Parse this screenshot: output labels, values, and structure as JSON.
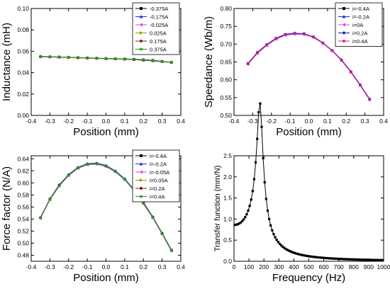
{
  "chart_data": [
    {
      "type": "line",
      "xlabel": "Position (mm)",
      "ylabel": "Inductance (mH)",
      "xlim": [
        -0.4,
        0.4
      ],
      "ylim": [
        0.0,
        0.1
      ],
      "xticks": [
        "-0.4",
        "-0.3",
        "-0.2",
        "-0.1",
        "0.0",
        "0.1",
        "0.2",
        "0.3",
        "0.4"
      ],
      "yticks": [
        "0.00",
        "0.02",
        "0.04",
        "0.06",
        "0.08",
        "0.10"
      ],
      "x": [
        -0.35,
        -0.3,
        -0.25,
        -0.2,
        -0.15,
        -0.1,
        -0.05,
        0.0,
        0.05,
        0.1,
        0.15,
        0.2,
        0.25,
        0.3,
        0.35
      ],
      "legend_position": "top-right",
      "series": [
        {
          "name": "-0.375A",
          "color": "#000000",
          "marker": "square",
          "values": [
            0.055,
            0.0548,
            0.0545,
            0.0543,
            0.054,
            0.0538,
            0.0535,
            0.0532,
            0.053,
            0.0528,
            0.0525,
            0.052,
            0.0515,
            0.0505,
            0.0495
          ]
        },
        {
          "name": "-0.175A",
          "color": "#1f2ee0",
          "marker": "triangle",
          "values": [
            0.0552,
            0.055,
            0.0547,
            0.0544,
            0.0541,
            0.0539,
            0.0536,
            0.0533,
            0.0531,
            0.0529,
            0.0526,
            0.0521,
            0.0516,
            0.0506,
            0.0497
          ]
        },
        {
          "name": "-0.025A",
          "color": "#e040e0",
          "marker": "triangle-left",
          "values": [
            0.0551,
            0.0549,
            0.0546,
            0.0544,
            0.0541,
            0.0538,
            0.0535,
            0.0532,
            0.053,
            0.0527,
            0.0523,
            0.0517,
            0.051,
            0.0502,
            0.0496
          ]
        },
        {
          "name": "0.025A",
          "color": "#9a9a00",
          "marker": "triangle-right",
          "values": [
            0.055,
            0.0548,
            0.0545,
            0.0543,
            0.054,
            0.0537,
            0.0534,
            0.0531,
            0.0529,
            0.0526,
            0.0522,
            0.0518,
            0.0512,
            0.0504,
            0.0498
          ]
        },
        {
          "name": "0.175A",
          "color": "#8b1a1a",
          "marker": "circle",
          "values": [
            0.0549,
            0.0547,
            0.0544,
            0.0542,
            0.0539,
            0.0536,
            0.0533,
            0.053,
            0.0528,
            0.0525,
            0.0521,
            0.0516,
            0.051,
            0.0503,
            0.0496
          ]
        },
        {
          "name": "0.375A",
          "color": "#1aa01a",
          "marker": "star",
          "values": [
            0.055,
            0.0548,
            0.0546,
            0.0543,
            0.054,
            0.0538,
            0.0535,
            0.0532,
            0.053,
            0.0527,
            0.0524,
            0.0519,
            0.0513,
            0.0505,
            0.0497
          ]
        }
      ]
    },
    {
      "type": "line",
      "xlabel": "Position (mm)",
      "ylabel": "Speedance (Wb/m)",
      "xlim": [
        -0.4,
        0.4
      ],
      "ylim": [
        0.5,
        0.8
      ],
      "xticks": [
        "-0.4",
        "-0.3",
        "-0.2",
        "-0.1",
        "0.0",
        "0.1",
        "0.2",
        "0.3",
        "0.4"
      ],
      "yticks": [
        "0.50",
        "0.55",
        "0.60",
        "0.65",
        "0.70",
        "0.75",
        "0.80"
      ],
      "x": [
        -0.325,
        -0.275,
        -0.225,
        -0.175,
        -0.125,
        -0.075,
        -0.025,
        0.025,
        0.075,
        0.125,
        0.175,
        0.225,
        0.275,
        0.325
      ],
      "legend_position": "top-right",
      "series": [
        {
          "name": "i=-0.4A",
          "color": "#000000",
          "marker": "square",
          "values": [
            0.645,
            0.676,
            0.698,
            0.716,
            0.727,
            0.73,
            0.729,
            0.72,
            0.703,
            0.682,
            0.655,
            0.622,
            0.585,
            0.545
          ]
        },
        {
          "name": "i=-0.2A",
          "color": "#1f2ee0",
          "marker": "triangle",
          "values": [
            0.646,
            0.677,
            0.699,
            0.717,
            0.728,
            0.731,
            0.729,
            0.721,
            0.704,
            0.682,
            0.656,
            0.623,
            0.586,
            0.546
          ]
        },
        {
          "name": "i=0A",
          "color": "#e040e0",
          "marker": "triangle-left",
          "values": [
            0.644,
            0.674,
            0.696,
            0.714,
            0.725,
            0.728,
            0.727,
            0.719,
            0.702,
            0.681,
            0.654,
            0.622,
            0.584,
            0.544
          ]
        },
        {
          "name": "i=0.2A",
          "color": "#1a1a8b",
          "marker": "diamond",
          "values": [
            0.645,
            0.676,
            0.698,
            0.715,
            0.726,
            0.729,
            0.728,
            0.72,
            0.703,
            0.682,
            0.655,
            0.622,
            0.585,
            0.545
          ]
        },
        {
          "name": "i=0.4A",
          "color": "#e0208a",
          "marker": "circle",
          "values": [
            0.644,
            0.675,
            0.697,
            0.715,
            0.726,
            0.729,
            0.728,
            0.719,
            0.703,
            0.681,
            0.654,
            0.621,
            0.584,
            0.544
          ]
        }
      ]
    },
    {
      "type": "line",
      "xlabel": "Position (mm)",
      "ylabel": "Force factor (N/A)",
      "xlim": [
        -0.4,
        0.4
      ],
      "ylim": [
        0.47,
        0.645
      ],
      "xticks": [
        "-0.4",
        "-0.3",
        "-0.2",
        "-0.1",
        "0.0",
        "0.1",
        "0.2",
        "0.3",
        "0.4"
      ],
      "yticks": [
        "0.48",
        "0.50",
        "0.52",
        "0.54",
        "0.56",
        "0.58",
        "0.60",
        "0.62",
        "0.64"
      ],
      "x": [
        -0.35,
        -0.3,
        -0.25,
        -0.2,
        -0.15,
        -0.1,
        -0.05,
        0.0,
        0.05,
        0.1,
        0.15,
        0.2,
        0.25,
        0.3,
        0.35
      ],
      "legend_position": "top-right",
      "series": [
        {
          "name": "i=-0.4A",
          "color": "#000000",
          "marker": "square",
          "values": [
            0.542,
            0.573,
            0.596,
            0.613,
            0.625,
            0.631,
            0.632,
            0.628,
            0.619,
            0.606,
            0.588,
            0.567,
            0.543,
            0.516,
            0.488
          ]
        },
        {
          "name": "i=-0.2A",
          "color": "#1f2ee0",
          "marker": "triangle",
          "values": [
            0.543,
            0.574,
            0.597,
            0.614,
            0.626,
            0.632,
            0.633,
            0.629,
            0.62,
            0.607,
            0.589,
            0.568,
            0.544,
            0.517,
            0.489
          ]
        },
        {
          "name": "i=-0.05A",
          "color": "#e040e0",
          "marker": "triangle-left",
          "values": [
            0.541,
            0.572,
            0.595,
            0.612,
            0.624,
            0.63,
            0.631,
            0.627,
            0.618,
            0.605,
            0.587,
            0.565,
            0.542,
            0.515,
            0.487
          ]
        },
        {
          "name": "i=0.05A",
          "color": "#9a9a00",
          "marker": "triangle-right",
          "values": [
            0.542,
            0.573,
            0.596,
            0.613,
            0.625,
            0.631,
            0.632,
            0.628,
            0.619,
            0.606,
            0.588,
            0.567,
            0.543,
            0.516,
            0.488
          ]
        },
        {
          "name": "i=0.2A",
          "color": "#8b1a1a",
          "marker": "circle",
          "values": [
            0.542,
            0.573,
            0.596,
            0.613,
            0.625,
            0.631,
            0.632,
            0.628,
            0.619,
            0.606,
            0.588,
            0.567,
            0.543,
            0.516,
            0.488
          ]
        },
        {
          "name": "i=0.4A",
          "color": "#1aa01a",
          "marker": "star",
          "values": [
            0.542,
            0.573,
            0.595,
            0.613,
            0.625,
            0.631,
            0.632,
            0.628,
            0.619,
            0.606,
            0.588,
            0.566,
            0.543,
            0.516,
            0.488
          ]
        }
      ]
    },
    {
      "type": "line",
      "xlabel": "Frequency (Hz)",
      "ylabel": "Transfer function (mm/N)",
      "xlim": [
        0,
        1000
      ],
      "ylim": [
        0,
        2.5
      ],
      "xticks": [
        "0",
        "100",
        "200",
        "300",
        "400",
        "500",
        "600",
        "700",
        "800",
        "900",
        "1000"
      ],
      "yticks": [
        "0.0",
        "0.5",
        "1.0",
        "1.5",
        "2.0",
        "2.5"
      ],
      "resonance_hz": 175,
      "series": [
        {
          "name": "",
          "color": "#000000",
          "marker": "square",
          "model": "2nd-order",
          "f0": 175,
          "zeta": 0.115,
          "dc_gain": 0.86
        }
      ]
    }
  ]
}
